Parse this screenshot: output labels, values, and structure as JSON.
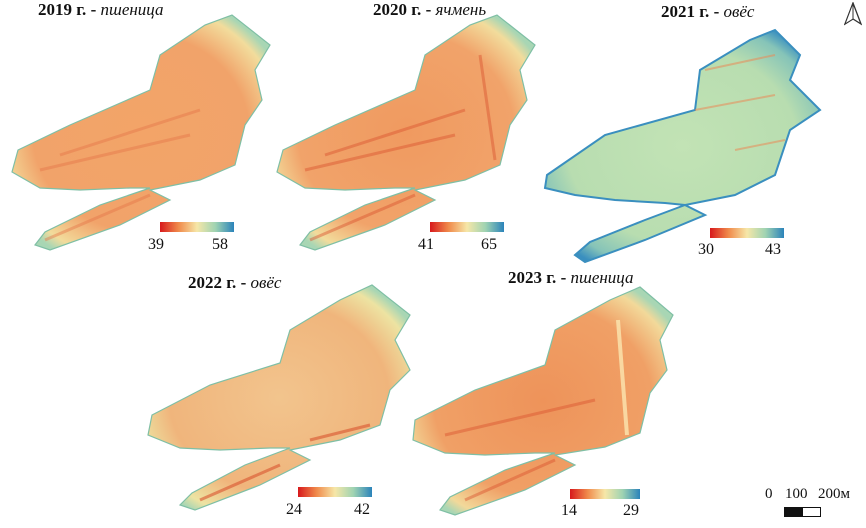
{
  "colors": {
    "low": "#d7191c",
    "mid_low": "#f08a4b",
    "mid": "#f6e7a8",
    "mid_high": "#9fd3b2",
    "high": "#2b83ba"
  },
  "panels": [
    {
      "year": "2019 г.",
      "sep": " - ",
      "crop": "пшеница",
      "min": "39",
      "max": "58",
      "tone": "warm"
    },
    {
      "year": "2020 г.",
      "sep": " - ",
      "crop": "ячмень",
      "min": "41",
      "max": "65",
      "tone": "warm"
    },
    {
      "year": "2021 г.",
      "sep": " - ",
      "crop": "овёс",
      "min": "30",
      "max": "43",
      "tone": "cool"
    },
    {
      "year": "2022 г.",
      "sep": " - ",
      "crop": "овёс",
      "min": "24",
      "max": "42",
      "tone": "mixed"
    },
    {
      "year": "2023 г.",
      "sep": " - ",
      "crop": "пшеница",
      "min": "14",
      "max": "29",
      "tone": "warm"
    }
  ],
  "scale": {
    "ticks": [
      "0",
      "100",
      "200м"
    ]
  },
  "north_arrow": "north-arrow-icon"
}
